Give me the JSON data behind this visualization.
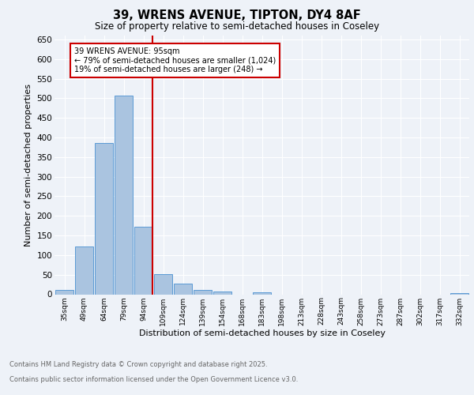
{
  "title_line1": "39, WRENS AVENUE, TIPTON, DY4 8AF",
  "title_line2": "Size of property relative to semi-detached houses in Coseley",
  "xlabel": "Distribution of semi-detached houses by size in Coseley",
  "ylabel": "Number of semi-detached properties",
  "bins": [
    "35sqm",
    "49sqm",
    "64sqm",
    "79sqm",
    "94sqm",
    "109sqm",
    "124sqm",
    "139sqm",
    "154sqm",
    "168sqm",
    "183sqm",
    "198sqm",
    "213sqm",
    "228sqm",
    "243sqm",
    "258sqm",
    "273sqm",
    "287sqm",
    "302sqm",
    "317sqm",
    "332sqm"
  ],
  "counts": [
    12,
    122,
    385,
    507,
    172,
    52,
    28,
    11,
    8,
    0,
    5,
    0,
    0,
    0,
    0,
    0,
    0,
    0,
    0,
    0,
    3
  ],
  "bar_color": "#aac4e0",
  "bar_edge_color": "#5b9bd5",
  "vline_color": "#cc0000",
  "annotation_text": "39 WRENS AVENUE: 95sqm\n← 79% of semi-detached houses are smaller (1,024)\n19% of semi-detached houses are larger (248) →",
  "annotation_box_color": "#ffffff",
  "annotation_box_edge": "#cc0000",
  "ylim": [
    0,
    660
  ],
  "yticks": [
    0,
    50,
    100,
    150,
    200,
    250,
    300,
    350,
    400,
    450,
    500,
    550,
    600,
    650
  ],
  "footer_line1": "Contains HM Land Registry data © Crown copyright and database right 2025.",
  "footer_line2": "Contains public sector information licensed under the Open Government Licence v3.0.",
  "background_color": "#eef2f8",
  "grid_color": "#ffffff"
}
